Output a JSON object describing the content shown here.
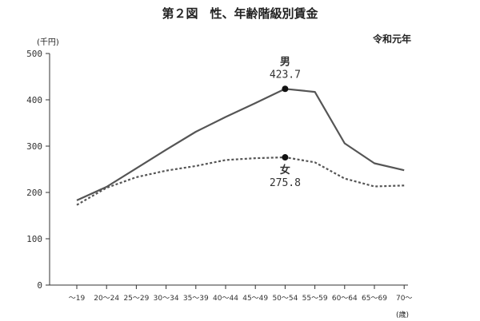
{
  "header": {
    "title": "第２図　性、年齢階級別賃金",
    "era": "令和元年",
    "unit": "(千円)",
    "age_unit": "(歳)"
  },
  "chart_data": {
    "type": "line",
    "title": "第２図　性、年齢階級別賃金",
    "ylabel": "(千円)",
    "xlabel": "(歳)",
    "ylim": [
      0,
      500
    ],
    "yticks": [
      0,
      100,
      200,
      300,
      400,
      500
    ],
    "grid": false,
    "categories": [
      "～19",
      "20～24",
      "25～29",
      "30～34",
      "35～39",
      "40～44",
      "45～49",
      "50～54",
      "55～59",
      "60～64",
      "65～69",
      "70～"
    ],
    "series": [
      {
        "name": "男",
        "line_style": "solid",
        "color": "#555555",
        "values": [
          183,
          212,
          252,
          292,
          331,
          363,
          393,
          423.7,
          417,
          306,
          263,
          248
        ]
      },
      {
        "name": "女",
        "line_style": "dashed",
        "color": "#555555",
        "values": [
          173,
          210,
          233,
          247,
          257,
          270,
          274,
          275.8,
          265,
          230,
          213,
          215
        ]
      }
    ],
    "annotations": [
      {
        "series": "男",
        "category": "50～54",
        "label": "男",
        "value_text": "423.7",
        "position": "above"
      },
      {
        "series": "女",
        "category": "50～54",
        "label": "女",
        "value_text": "275.8",
        "position": "below"
      }
    ]
  }
}
